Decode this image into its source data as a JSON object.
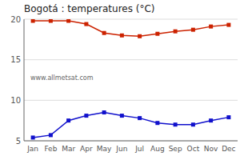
{
  "chart_data": {
    "type": "line",
    "title": "Bogotá : temperatures (°C)",
    "categories": [
      "Jan",
      "Feb",
      "Mar",
      "Apr",
      "May",
      "Jun",
      "Jul",
      "Aug",
      "Sep",
      "Oct",
      "Nov",
      "Dec"
    ],
    "series": [
      {
        "color": "#cc2200",
        "marker": "square",
        "values": [
          19.8,
          19.8,
          19.8,
          19.4,
          18.3,
          18.0,
          17.9,
          18.2,
          18.5,
          18.7,
          19.1,
          19.3
        ]
      },
      {
        "color": "#1111cc",
        "marker": "square",
        "values": [
          5.4,
          5.7,
          7.5,
          8.1,
          8.5,
          8.1,
          7.8,
          7.2,
          7.0,
          7.0,
          7.5,
          7.9
        ]
      }
    ],
    "ylim": [
      5,
      20
    ],
    "yticks": [
      5,
      10,
      15,
      20
    ],
    "grid": true,
    "annotations": [
      "www.allmetsat.com"
    ]
  }
}
